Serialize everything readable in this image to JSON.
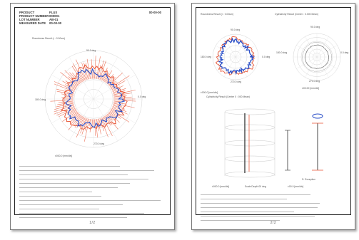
{
  "page1": {
    "header_labels": [
      "PRODUCT",
      "PRODUCT NUMBER",
      "LOT NUMBER",
      "MEASURED DATE"
    ],
    "header_values": [
      "FLUX",
      "000001",
      "AB-01",
      "00-00-00"
    ],
    "date": "00-00-00",
    "plot_title": "Roundness Result (r : 0.00um)",
    "angles": [
      "90.0 deg",
      "0.0 deg",
      "180.0 deg",
      "270.0 deg"
    ],
    "scale_label": "±000.0 [mm/div]",
    "page_number": "1/2"
  },
  "page2": {
    "plot1_title": "Roundness Result (r : 0.00um)",
    "plot2_title": "Cylindricity Result (Center : 0.000 Mean)",
    "plot3_title": "Cylindricity Result (Center 0 : 000 Mean)",
    "angles_left": [
      "90.0 deg",
      "0.0 deg",
      "180.0 deg",
      "270.0 deg"
    ],
    "angles_right": [
      "90.0 deg",
      "0.0 deg",
      "180.0 deg",
      "270.0 deg"
    ],
    "scale_left": "±000.0 [mm/div]",
    "scale_right": "±00.00 [mm/div]",
    "scale_bottom": "±000.0 [mm/div]",
    "depth_label": "Scale Depth 00 deg",
    "scale_bottom_right": "±00.0 [mm/div]",
    "legend": "S: Exception",
    "page_number": "2/2"
  },
  "colors": {
    "red": "#e85a3c",
    "blue": "#2a4fc8",
    "black": "#222222"
  }
}
